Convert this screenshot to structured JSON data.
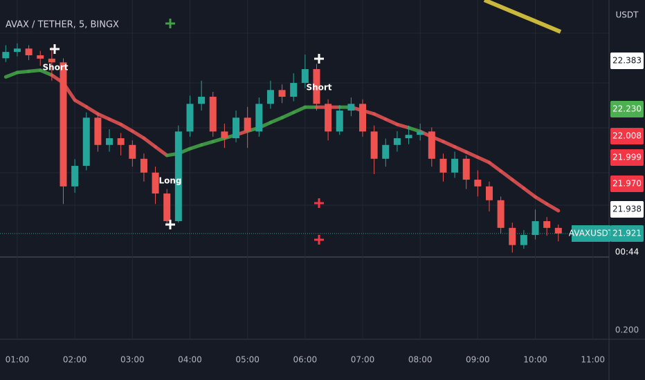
{
  "chart_data": {
    "type": "candlestick",
    "title": "AVAX / TETHER, 5, BINGX",
    "y_axis_unit": "USDT",
    "symbol_tag": "AVAXUSDT",
    "countdown": "00:44",
    "lower_pane_tag": "0.200",
    "up_color": "#26a69a",
    "down_color": "#ef5350",
    "x": [
      0.8,
      1.0,
      1.2,
      1.4,
      1.6,
      1.8,
      2.0,
      2.2,
      2.4,
      2.6,
      2.8,
      3.0,
      3.2,
      3.4,
      3.6,
      3.8,
      4.0,
      4.2,
      4.4,
      4.6,
      4.8,
      5.0,
      5.2,
      5.4,
      5.6,
      5.8,
      6.0,
      6.2,
      6.4,
      6.6,
      6.8,
      7.0,
      7.2,
      7.4,
      7.6,
      7.8,
      8.0,
      8.2,
      8.4,
      8.6,
      8.8,
      9.0,
      9.2,
      9.4,
      9.6,
      9.8,
      10.0,
      10.2,
      10.4
    ],
    "open": [
      22.39,
      22.407,
      22.416,
      22.398,
      22.389,
      22.379,
      22.047,
      22.102,
      22.231,
      22.158,
      22.176,
      22.158,
      22.121,
      22.084,
      22.028,
      21.954,
      22.194,
      22.268,
      22.287,
      22.194,
      22.176,
      22.231,
      22.194,
      22.268,
      22.305,
      22.287,
      22.324,
      22.361,
      22.268,
      22.194,
      22.25,
      22.268,
      22.194,
      22.121,
      22.158,
      22.176,
      22.185,
      22.194,
      22.121,
      22.084,
      22.121,
      22.065,
      22.047,
      22.01,
      21.936,
      21.89,
      21.917,
      21.954,
      21.936
    ],
    "high": [
      22.425,
      22.43,
      22.425,
      22.41,
      22.42,
      22.39,
      22.12,
      22.245,
      22.24,
      22.2,
      22.19,
      22.17,
      22.135,
      22.1,
      22.04,
      22.21,
      22.29,
      22.33,
      22.3,
      22.215,
      22.25,
      22.26,
      22.285,
      22.33,
      22.32,
      22.35,
      22.4,
      22.375,
      22.28,
      22.265,
      22.285,
      22.28,
      22.21,
      22.175,
      22.195,
      22.21,
      22.215,
      22.205,
      22.135,
      22.14,
      22.13,
      22.09,
      22.06,
      22.02,
      21.95,
      21.93,
      21.985,
      21.965,
      21.945
    ],
    "low": [
      22.38,
      22.395,
      22.385,
      22.37,
      22.33,
      22.0,
      22.03,
      22.09,
      22.14,
      22.14,
      22.13,
      22.1,
      22.06,
      22.0,
      21.945,
      21.95,
      22.18,
      22.25,
      22.18,
      22.15,
      22.165,
      22.15,
      22.18,
      22.255,
      22.27,
      22.275,
      22.31,
      22.25,
      22.17,
      22.185,
      22.235,
      22.18,
      22.08,
      22.1,
      22.14,
      22.16,
      22.17,
      22.1,
      22.06,
      22.07,
      22.04,
      22.02,
      21.98,
      21.92,
      21.87,
      21.88,
      21.905,
      21.915,
      21.9
    ],
    "close": [
      22.407,
      22.416,
      22.398,
      22.389,
      22.379,
      22.047,
      22.102,
      22.231,
      22.158,
      22.176,
      22.158,
      22.121,
      22.084,
      22.028,
      21.954,
      22.194,
      22.268,
      22.287,
      22.194,
      22.176,
      22.231,
      22.194,
      22.268,
      22.305,
      22.287,
      22.324,
      22.361,
      22.268,
      22.194,
      22.25,
      22.268,
      22.194,
      22.121,
      22.158,
      22.176,
      22.185,
      22.194,
      22.121,
      22.084,
      22.121,
      22.065,
      22.047,
      22.01,
      21.936,
      21.89,
      21.917,
      21.954,
      21.936,
      21.921
    ],
    "ema": {
      "up_color": "#43a047",
      "down_color": "#e05252",
      "values": [
        22.34,
        22.352,
        22.355,
        22.358,
        22.345,
        22.324,
        22.278,
        22.26,
        22.241,
        22.227,
        22.213,
        22.195,
        22.176,
        22.153,
        22.13,
        22.135,
        22.148,
        22.158,
        22.167,
        22.176,
        22.185,
        22.195,
        22.204,
        22.218,
        22.231,
        22.245,
        22.259,
        22.259,
        22.259,
        22.259,
        22.259,
        22.25,
        22.241,
        22.227,
        22.213,
        22.204,
        22.194,
        22.18,
        22.167,
        22.153,
        22.139,
        22.125,
        22.111,
        22.088,
        22.065,
        22.042,
        22.019,
        22.0,
        21.982
      ]
    },
    "xlim": [
      0.7,
      11.28
    ],
    "ylim": [
      21.858,
      22.546
    ],
    "xticks": [
      {
        "value": 1,
        "label": "01:00"
      },
      {
        "value": 2,
        "label": "02:00"
      },
      {
        "value": 3,
        "label": "03:00"
      },
      {
        "value": 4,
        "label": "04:00"
      },
      {
        "value": 5,
        "label": "05:00"
      },
      {
        "value": 6,
        "label": "06:00"
      },
      {
        "value": 7,
        "label": "07:00"
      },
      {
        "value": 8,
        "label": "08:00"
      },
      {
        "value": 9,
        "label": "09:00"
      },
      {
        "value": 10,
        "label": "10:00"
      },
      {
        "value": 11,
        "label": "11:00"
      }
    ],
    "annotations": [
      "Short",
      "Long",
      "Short"
    ],
    "price_tags": [
      {
        "text": "22.383",
        "bg": "#ffffff",
        "fg": "#131722"
      },
      {
        "text": "22.230",
        "bg": "#4caf50",
        "fg": "#ffffff"
      },
      {
        "text": "22.008",
        "bg": "#f23645",
        "fg": "#ffffff"
      },
      {
        "text": "21.999",
        "bg": "#f23645",
        "fg": "#ffffff"
      },
      {
        "text": "21.970",
        "bg": "#f23645",
        "fg": "#ffffff"
      },
      {
        "text": "21.938",
        "bg": "#ffffff",
        "fg": "#131722"
      },
      {
        "text": "21.921",
        "bg": "#26a69a",
        "fg": "#ffffff"
      }
    ]
  }
}
